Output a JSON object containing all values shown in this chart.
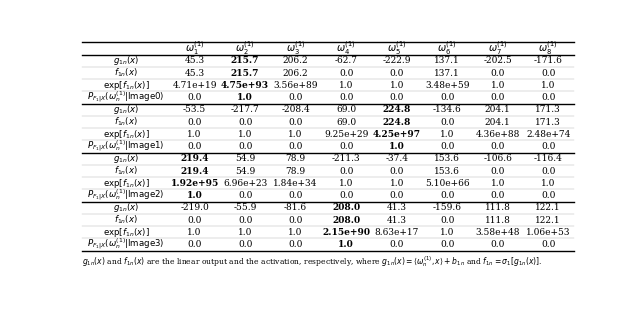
{
  "sections": [
    {
      "label": "Image0",
      "rows": [
        {
          "row_label": "$g_{1n}(x)$",
          "values": [
            "45.3",
            "215.7",
            "206.2",
            "-62.7",
            "-222.9",
            "137.1",
            "-202.5",
            "-171.6"
          ],
          "bold_indices": [
            1
          ]
        },
        {
          "row_label": "$f_{1n}(x)$",
          "values": [
            "45.3",
            "215.7",
            "206.2",
            "0.0",
            "0.0",
            "137.1",
            "0.0",
            "0.0"
          ],
          "bold_indices": [
            1
          ]
        },
        {
          "row_label": "$\\exp[f_{1n}(x)]$",
          "values": [
            "4.71e+19",
            "4.75e+93",
            "3.56e+89",
            "1.0",
            "1.0",
            "3.48e+59",
            "1.0",
            "1.0"
          ],
          "bold_indices": [
            1
          ]
        },
        {
          "row_label": "$P_{F_1|X}(\\omega_n^{(1)}|\\mathrm{Image0})$",
          "values": [
            "0.0",
            "1.0",
            "0.0",
            "0.0",
            "0.0",
            "0.0",
            "0.0",
            "0.0"
          ],
          "bold_indices": [
            1
          ]
        }
      ]
    },
    {
      "label": "Image1",
      "rows": [
        {
          "row_label": "$g_{1n}(x)$",
          "values": [
            "-53.5",
            "-217.7",
            "-208.4",
            "69.0",
            "224.8",
            "-134.6",
            "204.1",
            "171.3"
          ],
          "bold_indices": [
            4
          ]
        },
        {
          "row_label": "$f_{1n}(x)$",
          "values": [
            "0.0",
            "0.0",
            "0.0",
            "69.0",
            "224.8",
            "0.0",
            "204.1",
            "171.3"
          ],
          "bold_indices": [
            4
          ]
        },
        {
          "row_label": "$\\exp[f_{1n}(x)]$",
          "values": [
            "1.0",
            "1.0",
            "1.0",
            "9.25e+29",
            "4.25e+97",
            "1.0",
            "4.36e+88",
            "2.48e+74"
          ],
          "bold_indices": [
            4
          ]
        },
        {
          "row_label": "$P_{F_1|X}(\\omega_n^{(1)}|\\mathrm{Image1})$",
          "values": [
            "0.0",
            "0.0",
            "0.0",
            "0.0",
            "1.0",
            "0.0",
            "0.0",
            "0.0"
          ],
          "bold_indices": [
            4
          ]
        }
      ]
    },
    {
      "label": "Image2",
      "rows": [
        {
          "row_label": "$g_{1n}(x)$",
          "values": [
            "219.4",
            "54.9",
            "78.9",
            "-211.3",
            "-37.4",
            "153.6",
            "-106.6",
            "-116.4"
          ],
          "bold_indices": [
            0
          ]
        },
        {
          "row_label": "$f_{1n}(x)$",
          "values": [
            "219.4",
            "54.9",
            "78.9",
            "0.0",
            "0.0",
            "153.6",
            "0.0",
            "0.0"
          ],
          "bold_indices": [
            0
          ]
        },
        {
          "row_label": "$\\exp[f_{1n}(x)]$",
          "values": [
            "1.92e+95",
            "6.96e+23",
            "1.84e+34",
            "1.0",
            "1.0",
            "5.10e+66",
            "1.0",
            "1.0"
          ],
          "bold_indices": [
            0
          ]
        },
        {
          "row_label": "$P_{F_1|X}(\\omega_n^{(1)}|\\mathrm{Image2})$",
          "values": [
            "1.0",
            "0.0",
            "0.0",
            "0.0",
            "0.0",
            "0.0",
            "0.0",
            "0.0"
          ],
          "bold_indices": [
            0
          ]
        }
      ]
    },
    {
      "label": "Image3",
      "rows": [
        {
          "row_label": "$g_{1n}(x)$",
          "values": [
            "-219.0",
            "-55.9",
            "-81.6",
            "208.0",
            "41.3",
            "-159.6",
            "111.8",
            "122.1"
          ],
          "bold_indices": [
            3
          ]
        },
        {
          "row_label": "$f_{1n}(x)$",
          "values": [
            "0.0",
            "0.0",
            "0.0",
            "208.0",
            "41.3",
            "0.0",
            "111.8",
            "122.1"
          ],
          "bold_indices": [
            3
          ]
        },
        {
          "row_label": "$\\exp[f_{1n}(x)]$",
          "values": [
            "1.0",
            "1.0",
            "1.0",
            "2.15e+90",
            "8.63e+17",
            "1.0",
            "3.58e+48",
            "1.06e+53"
          ],
          "bold_indices": [
            3
          ]
        },
        {
          "row_label": "$P_{F_1|X}(\\omega_n^{(1)}|\\mathrm{Image3})$",
          "values": [
            "0.0",
            "0.0",
            "0.0",
            "1.0",
            "0.0",
            "0.0",
            "0.0",
            "0.0"
          ],
          "bold_indices": [
            3
          ]
        }
      ]
    }
  ],
  "col_headers": [
    "$\\omega_1^{(1)}$",
    "$\\omega_2^{(1)}$",
    "$\\omega_3^{(1)}$",
    "$\\omega_4^{(1)}$",
    "$\\omega_5^{(1)}$",
    "$\\omega_6^{(1)}$",
    "$\\omega_7^{(1)}$",
    "$\\omega_8^{(1)}$"
  ],
  "background_color": "#ffffff",
  "figsize": [
    6.4,
    3.13
  ],
  "dpi": 100
}
